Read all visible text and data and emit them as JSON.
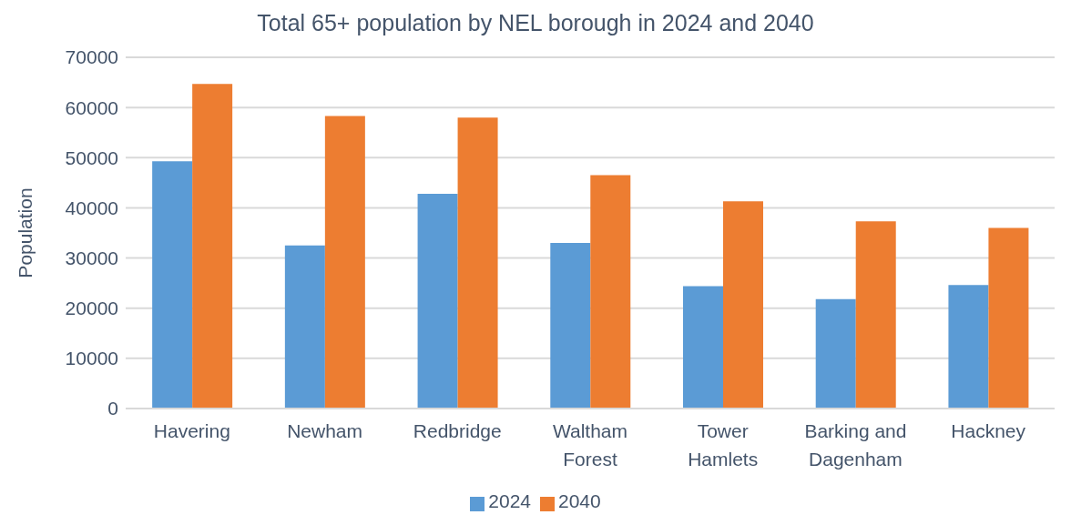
{
  "chart_data": {
    "type": "bar",
    "title": "Total 65+ population by NEL borough in 2024 and 2040",
    "ylabel": "Population",
    "categories": [
      "Havering",
      "Newham",
      "Redbridge",
      "Waltham Forest",
      "Tower Hamlets",
      "Barking and Dagenham",
      "Hackney"
    ],
    "series": [
      {
        "name": "2024",
        "color": "#5b9bd5",
        "values": [
          49300,
          32500,
          42800,
          33000,
          24400,
          21800,
          24600
        ]
      },
      {
        "name": "2040",
        "color": "#ed7d31",
        "values": [
          64700,
          58300,
          58000,
          46500,
          41300,
          37300,
          36000
        ]
      }
    ],
    "ylim": [
      0,
      70000
    ],
    "yticks": [
      0,
      10000,
      20000,
      30000,
      40000,
      50000,
      60000,
      70000
    ],
    "grid": "y",
    "legend": "bottom"
  }
}
